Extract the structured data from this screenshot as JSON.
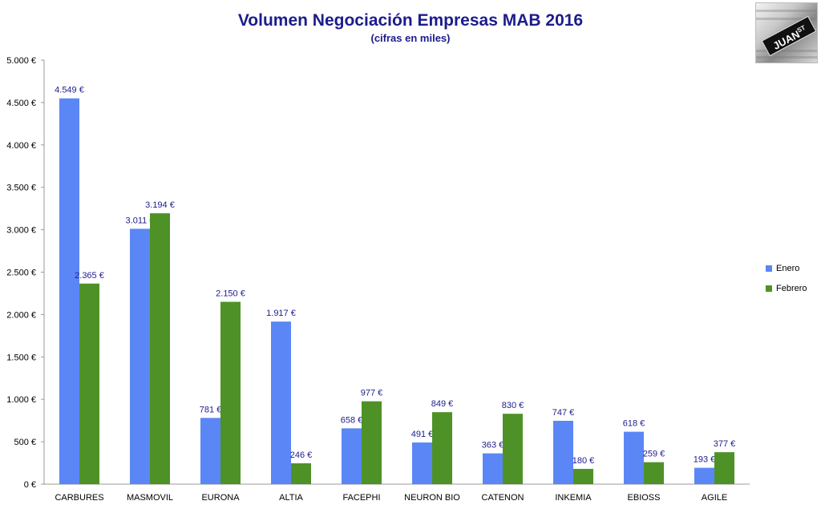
{
  "colors": {
    "enero": "#5b86f5",
    "febrero": "#4e9227",
    "title": "#1c1c8c",
    "label": "#1c1c8c"
  },
  "logo": {
    "text": "JUAN",
    "sup": "ST"
  },
  "chart_data": {
    "type": "bar",
    "title": "Volumen Negociación Empresas MAB 2016",
    "subtitle": "(cifras en miles)",
    "categories": [
      "CARBURES",
      "MASMOVIL",
      "EURONA",
      "ALTIA",
      "FACEPHI",
      "NEURON BIO",
      "CATENON",
      "INKEMIA",
      "EBIOSS",
      "AGILE"
    ],
    "series": [
      {
        "name": "Enero",
        "values": [
          4549,
          3011,
          781,
          1917,
          658,
          491,
          363,
          747,
          618,
          193
        ],
        "labels": [
          "4.549 €",
          "3.011 €",
          "781 €",
          "1.917 €",
          "658 €",
          "491 €",
          "363 €",
          "747 €",
          "618 €",
          "193 €"
        ]
      },
      {
        "name": "Febrero",
        "values": [
          2365,
          3194,
          2150,
          246,
          977,
          849,
          830,
          180,
          259,
          377
        ],
        "labels": [
          "2.365 €",
          "3.194 €",
          "2.150 €",
          "246 €",
          "977 €",
          "849 €",
          "830 €",
          "180 €",
          "259 €",
          "377 €"
        ]
      }
    ],
    "ylim": [
      0,
      5000
    ],
    "yticks": [
      0,
      500,
      1000,
      1500,
      2000,
      2500,
      3000,
      3500,
      4000,
      4500,
      5000
    ],
    "ytick_labels": [
      "0 €",
      "500 €",
      "1.000 €",
      "1.500 €",
      "2.000 €",
      "2.500 €",
      "3.000 €",
      "3.500 €",
      "4.000 €",
      "4.500 €",
      "5.000 €"
    ],
    "legend": "right",
    "grid": false
  }
}
